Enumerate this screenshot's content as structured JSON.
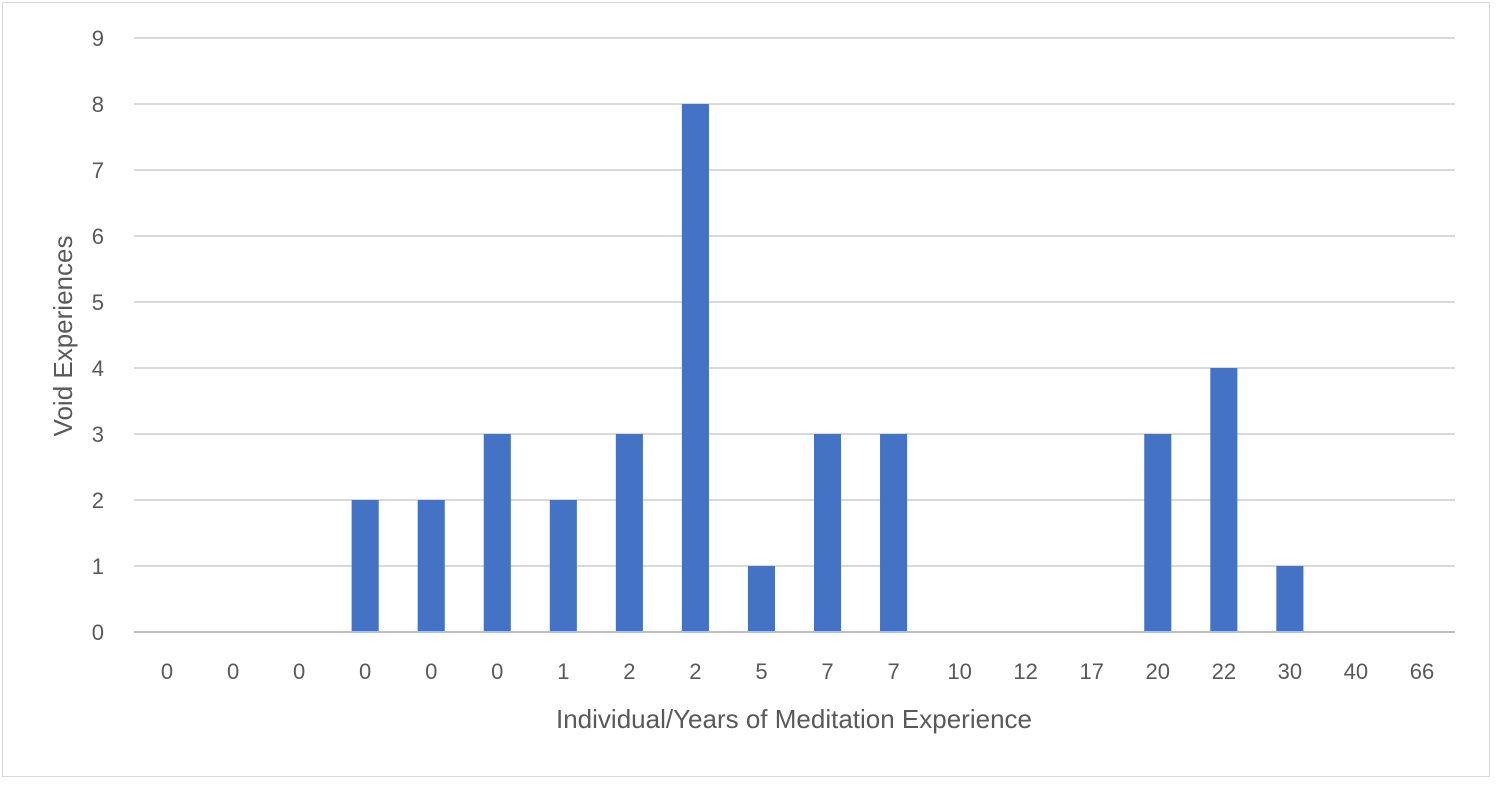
{
  "chart_data": {
    "type": "bar",
    "categories": [
      "0",
      "0",
      "0",
      "0",
      "0",
      "0",
      "1",
      "2",
      "2",
      "5",
      "7",
      "7",
      "10",
      "12",
      "17",
      "20",
      "22",
      "30",
      "40",
      "66"
    ],
    "values": [
      0,
      0,
      0,
      2,
      2,
      3,
      2,
      3,
      8,
      1,
      3,
      3,
      0,
      0,
      0,
      3,
      4,
      1,
      0,
      0
    ],
    "title": "",
    "xlabel": "Individual/Years of Meditation Experience",
    "ylabel": "Void Experiences",
    "ylim": [
      0,
      9
    ],
    "yticks": [
      0,
      1,
      2,
      3,
      4,
      5,
      6,
      7,
      8,
      9
    ],
    "grid": true,
    "bar_color": "#4472c4",
    "grid_color": "#d9d9d9",
    "axis_color": "#bfbfbf"
  }
}
